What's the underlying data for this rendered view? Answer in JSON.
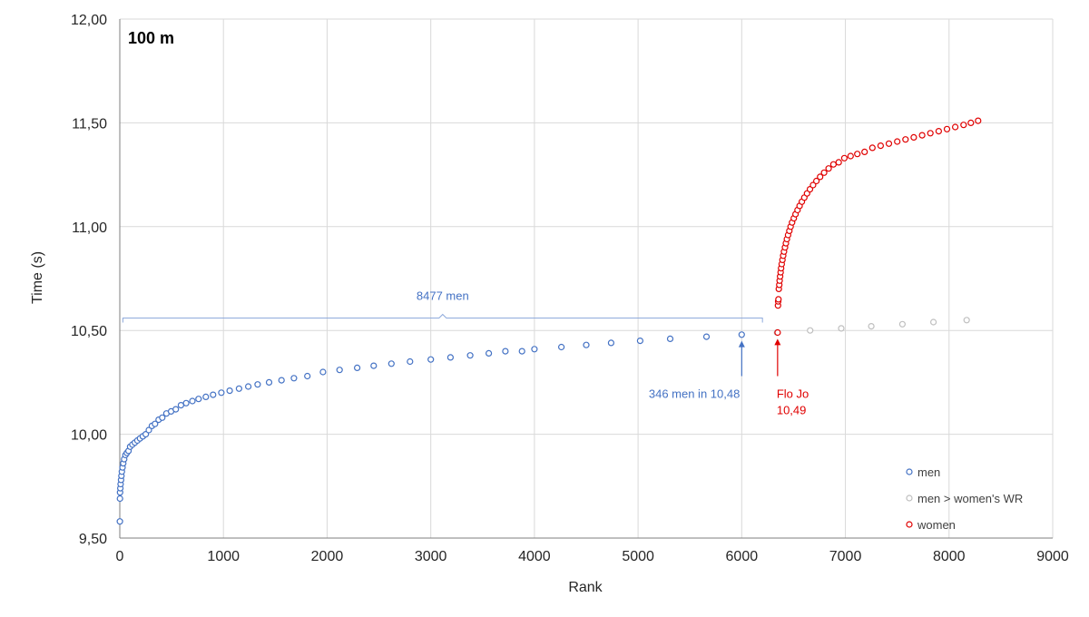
{
  "chart_data": {
    "type": "scatter",
    "title": "100 m",
    "xlabel": "Rank",
    "ylabel": "Time (s)",
    "xlim": [
      0,
      9000
    ],
    "ylim": [
      9.5,
      12.0
    ],
    "x_ticks": [
      0,
      1000,
      2000,
      3000,
      4000,
      5000,
      6000,
      7000,
      8000,
      9000
    ],
    "x_tick_labels": [
      "0",
      "1000",
      "2000",
      "3000",
      "4000",
      "5000",
      "6000",
      "7000",
      "8000",
      "9000"
    ],
    "y_ticks": [
      9.5,
      10.0,
      10.5,
      11.0,
      11.5,
      12.0
    ],
    "y_tick_labels": [
      "9,50",
      "10,00",
      "10,50",
      "11,00",
      "11,50",
      "12,00"
    ],
    "grid": true,
    "legend_position": "bottom-right",
    "colors": {
      "men": "#4472c4",
      "men_gt_wr": "#bfbfbf",
      "women": "#e00000",
      "axis": "#7f7f7f",
      "grid": "#d9d9d9"
    },
    "series": [
      {
        "name": "men",
        "color": "#4472c4",
        "points": [
          [
            1,
            9.58
          ],
          [
            2,
            9.69
          ],
          [
            3,
            9.72
          ],
          [
            5,
            9.74
          ],
          [
            8,
            9.76
          ],
          [
            12,
            9.78
          ],
          [
            16,
            9.8
          ],
          [
            20,
            9.82
          ],
          [
            26,
            9.84
          ],
          [
            33,
            9.86
          ],
          [
            42,
            9.88
          ],
          [
            54,
            9.9
          ],
          [
            68,
            9.91
          ],
          [
            84,
            9.92
          ],
          [
            100,
            9.94
          ],
          [
            122,
            9.95
          ],
          [
            145,
            9.96
          ],
          [
            170,
            9.97
          ],
          [
            195,
            9.98
          ],
          [
            222,
            9.99
          ],
          [
            250,
            10.0
          ],
          [
            280,
            10.02
          ],
          [
            310,
            10.04
          ],
          [
            340,
            10.05
          ],
          [
            375,
            10.07
          ],
          [
            410,
            10.08
          ],
          [
            450,
            10.1
          ],
          [
            495,
            10.11
          ],
          [
            540,
            10.12
          ],
          [
            590,
            10.14
          ],
          [
            640,
            10.15
          ],
          [
            700,
            10.16
          ],
          [
            760,
            10.17
          ],
          [
            830,
            10.18
          ],
          [
            900,
            10.19
          ],
          [
            980,
            10.2
          ],
          [
            1060,
            10.21
          ],
          [
            1150,
            10.22
          ],
          [
            1240,
            10.23
          ],
          [
            1330,
            10.24
          ],
          [
            1440,
            10.25
          ],
          [
            1560,
            10.26
          ],
          [
            1680,
            10.27
          ],
          [
            1810,
            10.28
          ],
          [
            1960,
            10.3
          ],
          [
            2120,
            10.31
          ],
          [
            2290,
            10.32
          ],
          [
            2450,
            10.33
          ],
          [
            2620,
            10.34
          ],
          [
            2800,
            10.35
          ],
          [
            3000,
            10.36
          ],
          [
            3190,
            10.37
          ],
          [
            3380,
            10.38
          ],
          [
            3560,
            10.39
          ],
          [
            3720,
            10.4
          ],
          [
            3880,
            10.4
          ],
          [
            4000,
            10.41
          ],
          [
            4260,
            10.42
          ],
          [
            4500,
            10.43
          ],
          [
            4740,
            10.44
          ],
          [
            5020,
            10.45
          ],
          [
            5310,
            10.46
          ],
          [
            5660,
            10.47
          ],
          [
            6000,
            10.48
          ]
        ]
      },
      {
        "name": "men > women's WR",
        "color": "#bfbfbf",
        "points": [
          [
            6340,
            10.49
          ],
          [
            6660,
            10.5
          ],
          [
            6960,
            10.51
          ],
          [
            7250,
            10.52
          ],
          [
            7550,
            10.53
          ],
          [
            7850,
            10.54
          ],
          [
            8170,
            10.55
          ]
        ]
      },
      {
        "name": "women",
        "color": "#e00000",
        "points": [
          [
            6346,
            10.49
          ],
          [
            6350,
            10.62
          ],
          [
            6352,
            10.64
          ],
          [
            6354,
            10.65
          ],
          [
            6358,
            10.7
          ],
          [
            6362,
            10.72
          ],
          [
            6366,
            10.74
          ],
          [
            6370,
            10.76
          ],
          [
            6375,
            10.78
          ],
          [
            6380,
            10.8
          ],
          [
            6386,
            10.82
          ],
          [
            6393,
            10.84
          ],
          [
            6400,
            10.86
          ],
          [
            6408,
            10.88
          ],
          [
            6417,
            10.9
          ],
          [
            6426,
            10.92
          ],
          [
            6436,
            10.94
          ],
          [
            6447,
            10.96
          ],
          [
            6459,
            10.98
          ],
          [
            6472,
            11.0
          ],
          [
            6486,
            11.02
          ],
          [
            6502,
            11.04
          ],
          [
            6519,
            11.06
          ],
          [
            6538,
            11.08
          ],
          [
            6558,
            11.1
          ],
          [
            6580,
            11.12
          ],
          [
            6604,
            11.14
          ],
          [
            6630,
            11.16
          ],
          [
            6658,
            11.18
          ],
          [
            6688,
            11.2
          ],
          [
            6720,
            11.22
          ],
          [
            6756,
            11.24
          ],
          [
            6795,
            11.26
          ],
          [
            6838,
            11.28
          ],
          [
            6885,
            11.3
          ],
          [
            6936,
            11.31
          ],
          [
            6990,
            11.33
          ],
          [
            7050,
            11.34
          ],
          [
            7115,
            11.35
          ],
          [
            7185,
            11.36
          ],
          [
            7260,
            11.38
          ],
          [
            7340,
            11.39
          ],
          [
            7420,
            11.4
          ],
          [
            7500,
            11.41
          ],
          [
            7580,
            11.42
          ],
          [
            7660,
            11.43
          ],
          [
            7740,
            11.44
          ],
          [
            7820,
            11.45
          ],
          [
            7900,
            11.46
          ],
          [
            7980,
            11.47
          ],
          [
            8060,
            11.48
          ],
          [
            8140,
            11.49
          ],
          [
            8210,
            11.5
          ],
          [
            8280,
            11.51
          ]
        ]
      }
    ],
    "annotations": {
      "brace_label": "8477 men",
      "brace_range": [
        30,
        6200
      ],
      "brace_y": 10.56,
      "men_label": "346 men in 10,48",
      "men_arrow_x": 6000,
      "men_arrow_y_from": 10.28,
      "men_arrow_y_to": 10.45,
      "women_label_line1": "Flo Jo",
      "women_label_line2": "10,49",
      "women_arrow_x": 6346,
      "women_arrow_y_from": 10.28,
      "women_arrow_y_to": 10.46
    }
  }
}
